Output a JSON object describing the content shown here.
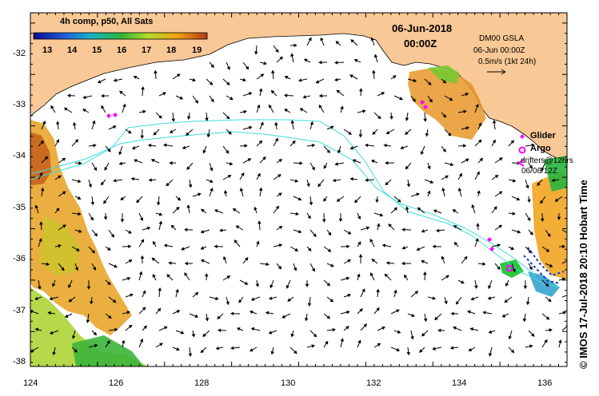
{
  "colorbar": {
    "title": "4h comp, p50, All Sats",
    "ticks": [
      "13",
      "14",
      "15",
      "16",
      "17",
      "18",
      "19"
    ],
    "colors": [
      "#0a0a8c",
      "#1e5adc",
      "#19b4c8",
      "#2db43c",
      "#b4dc28",
      "#f0a014",
      "#b43c14"
    ]
  },
  "header": {
    "date": "06-Jun-2018",
    "time": "00:00Z"
  },
  "info": {
    "line1": "DM00 GSLA",
    "line2": "06-Jun 00:00Z",
    "line3": "0.5m/s (1kt 24h)"
  },
  "legend": {
    "glider": "Glider",
    "argo": "Argo",
    "drifters": "drifters@12hrs",
    "drifters_time": "06/06/12Z"
  },
  "axes": {
    "y_ticks": [
      "-32",
      "-33",
      "-34",
      "-35",
      "-36",
      "-37",
      "-38"
    ],
    "x_ticks": [
      "124",
      "126",
      "128",
      "130",
      "132",
      "134",
      "136"
    ],
    "lon_range": [
      124,
      136.5
    ],
    "lat_range": [
      -31.4,
      -38.1
    ]
  },
  "watermark": "© IMOS 17-Jul-2018 20:10 Hobart Time",
  "map_colors": {
    "land": "#f8c896",
    "ocean": "#ffffff",
    "frame": "#000000",
    "current_line": "#3cdcdc"
  }
}
